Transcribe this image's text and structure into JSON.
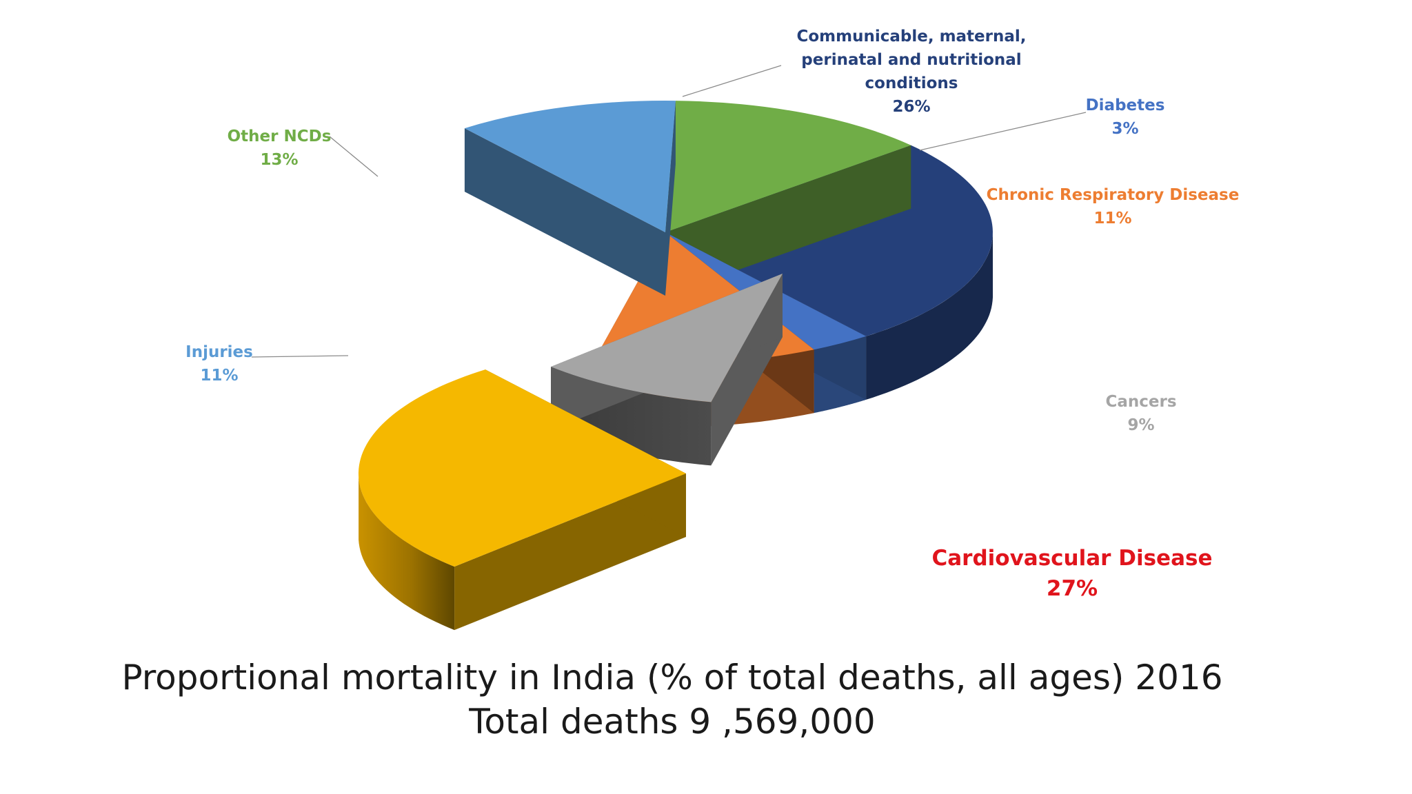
{
  "chart_data": {
    "type": "pie",
    "title": "Proportional mortality in India (% of total deaths, all ages) 2016",
    "subtitle": "Total deaths 9 ,569,000",
    "slices": [
      {
        "label": "Cardiovascular Disease",
        "value": 27,
        "value_label": "27%",
        "color": "#f5b800",
        "label_color": "#e0141c",
        "exploded": true
      },
      {
        "label": "Injuries",
        "value": 11,
        "value_label": "11%",
        "color": "#5b9bd5",
        "label_color": "#5b9bd5",
        "exploded": false
      },
      {
        "label": "Other NCDs",
        "value": 13,
        "value_label": "13%",
        "color": "#70ad47",
        "label_color": "#70ad47",
        "exploded": false
      },
      {
        "label": "Communicable, maternal, perinatal and nutritional conditions",
        "value": 26,
        "value_label": "26%",
        "color": "#25407a",
        "label_color": "#25407a",
        "exploded": false
      },
      {
        "label": "Diabetes",
        "value": 3,
        "value_label": "3%",
        "color": "#4472c4",
        "label_color": "#4472c4",
        "exploded": false
      },
      {
        "label": "Chronic Respiratory Disease",
        "value": 11,
        "value_label": "11%",
        "color": "#ed7d31",
        "label_color": "#ed7d31",
        "exploded": false
      },
      {
        "label": "Cancers",
        "value": 9,
        "value_label": "9%",
        "color": "#a5a5a5",
        "label_color": "#a5a5a5",
        "exploded": true
      }
    ],
    "style": "3d-exploded"
  }
}
